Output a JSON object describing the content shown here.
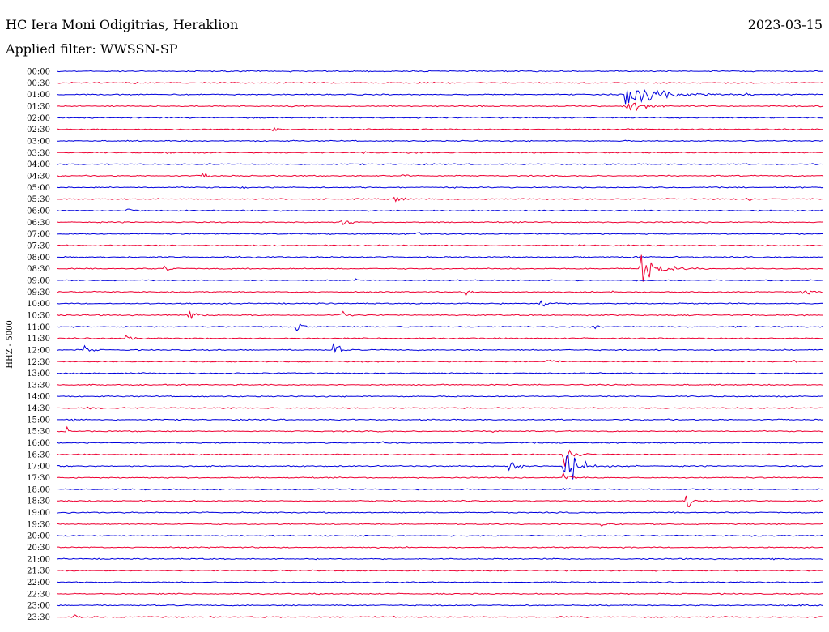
{
  "header": {
    "station": "HC Iera Moni Odigitrias, Heraklion",
    "date": "2023-03-15",
    "filter_label": "Applied filter: WWSSN-SP"
  },
  "chart_data": {
    "type": "line",
    "ylabel": "HHZ - 5000",
    "colors": [
      "#0000dd",
      "#ee0033"
    ],
    "rows": [
      {
        "time": "00:00",
        "events": [
          [
            0.43,
            5,
            0.15
          ]
        ]
      },
      {
        "time": "00:30",
        "events": [
          [
            0.1,
            3,
            0.1
          ],
          [
            0.9,
            3,
            0.1
          ]
        ]
      },
      {
        "time": "01:00",
        "events": [
          [
            0.742,
            30,
            2.2
          ],
          [
            0.9,
            4,
            0.2
          ]
        ]
      },
      {
        "time": "01:30",
        "events": [
          [
            0.742,
            18,
            1.2
          ]
        ]
      },
      {
        "time": "02:00",
        "events": []
      },
      {
        "time": "02:30",
        "events": [
          [
            0.28,
            4,
            0.4
          ]
        ]
      },
      {
        "time": "03:00",
        "events": []
      },
      {
        "time": "03:30",
        "events": [
          [
            0.14,
            4,
            0.3
          ],
          [
            0.4,
            3,
            0.2
          ]
        ]
      },
      {
        "time": "04:00",
        "events": []
      },
      {
        "time": "04:30",
        "events": [
          [
            0.19,
            5,
            0.9
          ],
          [
            0.45,
            4,
            0.5
          ]
        ]
      },
      {
        "time": "05:00",
        "events": [
          [
            0.24,
            4,
            0.4
          ]
        ]
      },
      {
        "time": "05:30",
        "events": [
          [
            0.44,
            8,
            0.6
          ],
          [
            0.9,
            4,
            0.4
          ]
        ]
      },
      {
        "time": "06:00",
        "events": [
          [
            0.09,
            6,
            0.6
          ]
        ]
      },
      {
        "time": "06:30",
        "events": [
          [
            0.37,
            6,
            1.2
          ]
        ]
      },
      {
        "time": "07:00",
        "events": [
          [
            0.47,
            6,
            0.5
          ]
        ]
      },
      {
        "time": "07:30",
        "events": []
      },
      {
        "time": "08:00",
        "events": [
          [
            0.75,
            6,
            0.5
          ]
        ]
      },
      {
        "time": "08:30",
        "events": [
          [
            0.14,
            6,
            0.6
          ],
          [
            0.76,
            18,
            2.4
          ]
        ]
      },
      {
        "time": "09:00",
        "events": [
          [
            0.39,
            4,
            0.4
          ]
        ]
      },
      {
        "time": "09:30",
        "events": [
          [
            0.53,
            5,
            0.9
          ],
          [
            0.72,
            3,
            1.0
          ],
          [
            0.97,
            8,
            0.6
          ]
        ]
      },
      {
        "time": "10:00",
        "events": [
          [
            0.63,
            8,
            1.0
          ]
        ]
      },
      {
        "time": "10:30",
        "events": [
          [
            0.17,
            8,
            1.2
          ],
          [
            0.37,
            6,
            1.2
          ]
        ]
      },
      {
        "time": "11:00",
        "events": [
          [
            0.31,
            6,
            1.4
          ],
          [
            0.7,
            4,
            0.4
          ]
        ]
      },
      {
        "time": "11:30",
        "events": [
          [
            0.09,
            5,
            0.6
          ]
        ]
      },
      {
        "time": "12:00",
        "events": [
          [
            0.035,
            6,
            0.7
          ],
          [
            0.36,
            6,
            1.6
          ]
        ]
      },
      {
        "time": "12:30",
        "events": [
          [
            0.64,
            6,
            0.6
          ],
          [
            0.96,
            4,
            0.4
          ]
        ]
      },
      {
        "time": "13:00",
        "events": []
      },
      {
        "time": "13:30",
        "events": []
      },
      {
        "time": "14:00",
        "events": []
      },
      {
        "time": "14:30",
        "events": [
          [
            0.04,
            5,
            0.5
          ]
        ]
      },
      {
        "time": "15:00",
        "events": [
          [
            0.02,
            4,
            0.5
          ]
        ]
      },
      {
        "time": "15:30",
        "events": [
          [
            0.01,
            3,
            1.2
          ],
          [
            0.57,
            5,
            0.4
          ]
        ]
      },
      {
        "time": "16:00",
        "events": [
          [
            0.42,
            4,
            0.3
          ]
        ]
      },
      {
        "time": "16:30",
        "events": [
          [
            0.66,
            10,
            2.0
          ]
        ]
      },
      {
        "time": "17:00",
        "events": [
          [
            0.59,
            8,
            1.4
          ],
          [
            0.66,
            14,
            3.8
          ]
        ]
      },
      {
        "time": "17:30",
        "events": [
          [
            0.66,
            6,
            1.6
          ]
        ]
      },
      {
        "time": "18:00",
        "events": [
          [
            0.66,
            4,
            0.8
          ],
          [
            0.85,
            4,
            0.3
          ]
        ]
      },
      {
        "time": "18:30",
        "events": [
          [
            0.82,
            8,
            1.6
          ]
        ]
      },
      {
        "time": "19:00",
        "events": []
      },
      {
        "time": "19:30",
        "events": [
          [
            0.71,
            6,
            0.4
          ]
        ]
      },
      {
        "time": "20:00",
        "events": [
          [
            0.38,
            3,
            0.3
          ]
        ]
      },
      {
        "time": "20:30",
        "events": [
          [
            0.69,
            3,
            0.3
          ]
        ]
      },
      {
        "time": "21:00",
        "events": [
          [
            0.93,
            4,
            0.3
          ]
        ]
      },
      {
        "time": "21:30",
        "events": []
      },
      {
        "time": "22:00",
        "events": [
          [
            0.49,
            3,
            0.3
          ]
        ]
      },
      {
        "time": "22:30",
        "events": []
      },
      {
        "time": "23:00",
        "events": [
          [
            0.97,
            4,
            0.5
          ]
        ]
      },
      {
        "time": "23:30",
        "events": [
          [
            0.02,
            4,
            0.5
          ],
          [
            0.44,
            4,
            0.3
          ]
        ]
      }
    ]
  }
}
